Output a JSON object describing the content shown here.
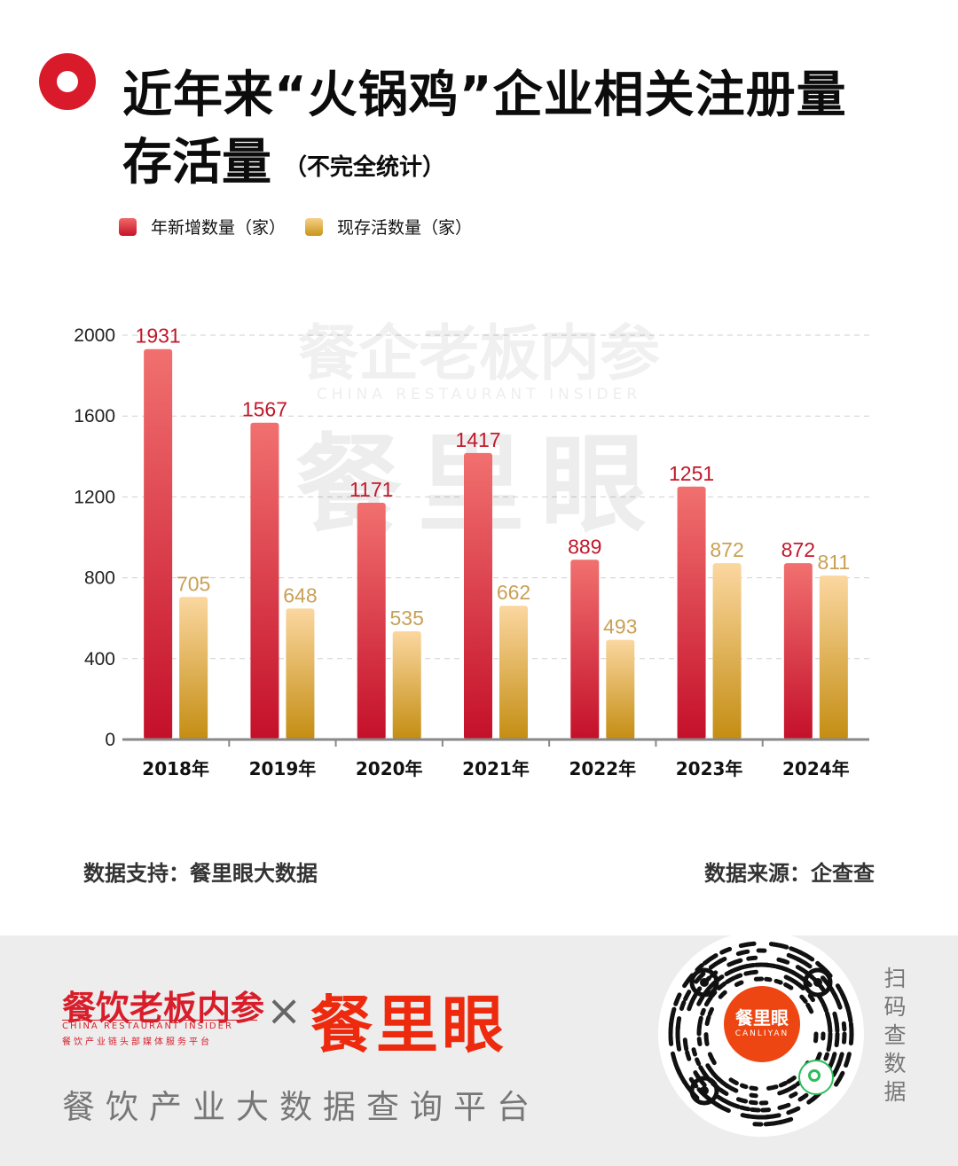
{
  "header": {
    "title_line1": "近年来“火锅鸡”企业相关注册量",
    "title_line2": "存活量",
    "title_note": "（不完全统计）"
  },
  "legend": {
    "series1": "年新增数量（家）",
    "series2": "现存活数量（家）"
  },
  "chart_data": {
    "type": "bar",
    "categories": [
      "2018年",
      "2019年",
      "2020年",
      "2021年",
      "2022年",
      "2023年",
      "2024年"
    ],
    "series": [
      {
        "name": "年新增数量（家）",
        "values": [
          1931,
          1567,
          1171,
          1417,
          889,
          1251,
          872
        ],
        "color": "#d6202f",
        "label_color": "#c1182a"
      },
      {
        "name": "现存活数量（家）",
        "values": [
          705,
          648,
          535,
          662,
          493,
          872,
          811
        ],
        "color": "#d9a63a",
        "label_color": "#c9a056"
      }
    ],
    "ylim": [
      0,
      2000
    ],
    "yticks": [
      0,
      400,
      800,
      1200,
      1600,
      2000
    ],
    "grid": true,
    "watermark_top": "餐企老板内参",
    "watermark_en": "CHINA RESTAURANT INSIDER",
    "watermark_main": "餐里眼"
  },
  "footer": {
    "support": "数据支持：餐里眼大数据",
    "source": "数据来源：企查查"
  },
  "brand": {
    "name_cn": "餐饮老板内参",
    "name_en": "CHINA RESTAURANT INSIDER",
    "tagline": "餐饮产业链头部媒体服务平台",
    "cross": "×",
    "partner": "餐里眼",
    "platform": "餐饮产业大数据查询平台"
  },
  "qr": {
    "center_cn": "餐里眼",
    "center_en": "CANLIYAN",
    "scan_label": "扫码查数据"
  }
}
